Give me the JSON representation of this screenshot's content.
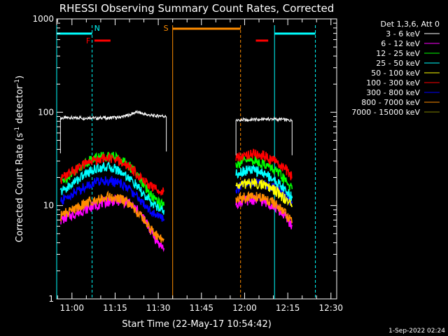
{
  "chart_data": {
    "type": "line",
    "title": "RHESSI Observing Summary Count Rates, Corrected",
    "xlabel": "Start Time (22-May-17 10:54:42)",
    "ylabel": "Corrected Count Rate (s^-1 detector^-1)",
    "ylabel_main": "Corrected Count Rate (s",
    "ylabel_sup1": "-1",
    "ylabel_mid": " detector",
    "ylabel_sup2": "-1",
    "ylabel_end": ")",
    "yscale": "log",
    "ylim": [
      1,
      1000
    ],
    "xlim_minutes": [
      654.7,
      752.0
    ],
    "x_tick_labels": [
      "11:00",
      "11:15",
      "11:30",
      "11:45",
      "12:00",
      "12:15",
      "12:30"
    ],
    "x_ticks_minutes": [
      660,
      675,
      690,
      705,
      720,
      735,
      750
    ],
    "y_tick_labels": [
      "1",
      "10",
      "100",
      "1000"
    ],
    "y_ticks": [
      1,
      10,
      100,
      1000
    ],
    "legend_header": "Det 1,3,6, Att 0",
    "legend_placement": "outside-right",
    "series": [
      {
        "name": "3 - 6 keV",
        "color": "#000000",
        "segments": [
          {
            "x": [
              656.0,
              657.2,
              658.3,
              659.5,
              660.6,
              661.8,
              662.9,
              664.1,
              665.2,
              666.4,
              667.5,
              668.7,
              669.8,
              671.0,
              672.1,
              673.3,
              674.4,
              675.6,
              676.7,
              677.9,
              679.0,
              680.2,
              681.3,
              682.5,
              683.6,
              684.8,
              685.9,
              687.1,
              688.2,
              689.4,
              690.5,
              691.7,
              692.8
            ],
            "y": [
              86,
              87,
              87,
              88,
              86,
              87,
              88,
              86,
              87,
              88,
              87,
              86,
              87,
              88,
              86,
              87,
              88,
              87,
              89,
              90,
              92,
              94,
              98,
              100,
              99,
              96,
              94,
              93,
              92,
              91,
              92,
              91,
              90
            ]
          },
          {
            "x": [
              717.0,
              718.3,
              719.6,
              720.9,
              722.2,
              723.5,
              724.8,
              726.1,
              727.4,
              728.7,
              730.0,
              731.3,
              732.6,
              733.9,
              735.2,
              736.5
            ],
            "y": [
              82,
              82,
              83,
              82,
              83,
              84,
              83,
              84,
              85,
              84,
              85,
              83,
              84,
              83,
              82,
              82
            ]
          }
        ]
      },
      {
        "name": "6 - 12 keV",
        "color": "#ff00ff",
        "segments": [
          {
            "x": [
              656.0,
              657.5,
              659.0,
              660.5,
              662.0,
              663.5,
              665.0,
              666.5,
              668.0,
              669.5,
              671.0,
              672.5,
              674.0,
              675.5,
              677.0,
              678.5,
              680.0,
              681.5,
              683.0,
              684.5,
              686.0,
              687.5,
              689.0,
              690.5,
              692.0
            ],
            "y": [
              7.0,
              7.3,
              7.7,
              8.0,
              8.4,
              8.8,
              9.2,
              9.6,
              10.0,
              10.4,
              10.8,
              11.0,
              11.2,
              11.3,
              11.2,
              10.9,
              10.4,
              9.6,
              8.7,
              7.6,
              6.4,
              5.3,
              4.4,
              3.8,
              3.5
            ]
          },
          {
            "x": [
              717.0,
              718.4,
              719.8,
              721.2,
              722.6,
              724.0,
              725.4,
              726.8,
              728.2,
              729.6,
              731.0,
              732.4,
              733.8,
              735.2,
              736.5
            ],
            "y": [
              10.5,
              10.9,
              11.2,
              11.4,
              11.5,
              11.5,
              11.3,
              11.0,
              10.6,
              10.1,
              9.4,
              8.6,
              7.8,
              6.9,
              6.0
            ]
          }
        ]
      },
      {
        "name": "12 - 25 keV",
        "color": "#00ff00",
        "segments": [
          {
            "x": [
              656.0,
              657.5,
              659.0,
              660.5,
              662.0,
              663.5,
              665.0,
              666.5,
              668.0,
              669.5,
              671.0,
              672.5,
              674.0,
              675.5,
              677.0,
              678.5,
              680.0,
              681.5,
              683.0,
              684.5,
              686.0,
              687.5,
              689.0,
              690.5,
              692.0
            ],
            "y": [
              18,
              19.5,
              21,
              23,
              25,
              27,
              29,
              31,
              32.5,
              33.5,
              34,
              34,
              33.5,
              32.5,
              31,
              29,
              26.5,
              23.5,
              20.5,
              17.5,
              15,
              13,
              11.5,
              10.5,
              10
            ]
          },
          {
            "x": [
              717.0,
              718.4,
              719.8,
              721.2,
              722.6,
              724.0,
              725.4,
              726.8,
              728.2,
              729.6,
              731.0,
              732.4,
              733.8,
              735.2,
              736.5
            ],
            "y": [
              28,
              29,
              30,
              30.5,
              30.5,
              30,
              29,
              28,
              26.5,
              25,
              23,
              21,
              19,
              17,
              15
            ]
          }
        ]
      },
      {
        "name": "25 - 50 keV",
        "color": "#00ffff",
        "segments": [
          {
            "x": [
              656.0,
              657.5,
              659.0,
              660.5,
              662.0,
              663.5,
              665.0,
              666.5,
              668.0,
              669.5,
              671.0,
              672.5,
              674.0,
              675.5,
              677.0,
              678.5,
              680.0,
              681.5,
              683.0,
              684.5,
              686.0,
              687.5,
              689.0,
              690.5,
              692.0
            ],
            "y": [
              14,
              15,
              16,
              17.5,
              19,
              20.5,
              22,
              23.5,
              24.5,
              25.5,
              26,
              26,
              25.5,
              24.5,
              23,
              21.5,
              19.5,
              17.5,
              15.5,
              13.5,
              12,
              10.8,
              10,
              9.4,
              9
            ]
          },
          {
            "x": [
              717.0,
              718.4,
              719.8,
              721.2,
              722.6,
              724.0,
              725.4,
              726.8,
              728.2,
              729.6,
              731.0,
              732.4,
              733.8,
              735.2,
              736.5
            ],
            "y": [
              22,
              23,
              23.5,
              24,
              24,
              23.5,
              23,
              22,
              21,
              19.5,
              18,
              16.5,
              15,
              13.5,
              12
            ]
          }
        ]
      },
      {
        "name": "50 - 100 keV",
        "color": "#ffff00",
        "segments": [
          {
            "x": [
              717.0,
              718.4,
              719.8,
              721.2,
              722.6,
              724.0,
              725.4,
              726.8,
              728.2,
              729.6,
              731.0,
              732.4,
              733.8,
              735.2,
              736.5
            ],
            "y": [
              16,
              16.5,
              17,
              17.5,
              17.5,
              17.3,
              17,
              16.5,
              15.8,
              15,
              14,
              13,
              12,
              11,
              10
            ]
          }
        ]
      },
      {
        "name": "100 - 300 keV",
        "color": "#ff0000",
        "segments": [
          {
            "x": [
              656.0,
              657.5,
              659.0,
              660.5,
              662.0,
              663.5,
              665.0,
              666.5,
              668.0,
              669.5,
              671.0,
              672.5,
              674.0,
              675.5,
              677.0,
              678.5,
              680.0,
              681.5,
              683.0,
              684.5,
              686.0,
              687.5,
              689.0,
              690.5,
              692.0
            ],
            "y": [
              19,
              20.5,
              22,
              23.5,
              25,
              26.5,
              28,
              29.5,
              30.5,
              31.5,
              32,
              32,
              31.5,
              30.5,
              29,
              27.5,
              25.5,
              23.5,
              21.5,
              19.5,
              17.5,
              16,
              15,
              14.5,
              14.5
            ]
          },
          {
            "x": [
              717.0,
              718.4,
              719.8,
              721.2,
              722.6,
              724.0,
              725.4,
              726.8,
              728.2,
              729.6,
              731.0,
              732.4,
              733.8,
              735.2,
              736.5
            ],
            "y": [
              32,
              33,
              34,
              35,
              35.5,
              35.5,
              35,
              34,
              32.5,
              31,
              29,
              27,
              25,
              22.5,
              20
            ]
          }
        ]
      },
      {
        "name": "300 - 800 keV",
        "color": "#0000ff",
        "segments": [
          {
            "x": [
              656.0,
              657.5,
              659.0,
              660.5,
              662.0,
              663.5,
              665.0,
              666.5,
              668.0,
              669.5,
              671.0,
              672.5,
              674.0,
              675.5,
              677.0,
              678.5,
              680.0,
              681.5,
              683.0,
              684.5,
              686.0,
              687.5,
              689.0,
              690.5,
              692.0
            ],
            "y": [
              11,
              11.8,
              12.6,
              13.5,
              14.4,
              15.3,
              16.2,
              17,
              17.7,
              18.2,
              18.5,
              18.5,
              18.2,
              17.7,
              17,
              16,
              14.8,
              13.5,
              12.2,
              11,
              9.8,
              8.8,
              8,
              7.5,
              7.2
            ]
          },
          {
            "x": [
              717.0,
              718.4,
              719.8,
              721.2,
              722.6,
              724.0,
              725.4,
              726.8,
              728.2,
              729.6,
              731.0,
              732.4,
              733.8,
              735.2,
              736.5
            ],
            "y": [
              15,
              15.8,
              16.5,
              17,
              17.3,
              17.5,
              17.3,
              17,
              16.5,
              15.8,
              15,
              14,
              13,
              11.8,
              10.5
            ]
          }
        ]
      },
      {
        "name": "800 - 7000 keV",
        "color": "#ff8c00",
        "segments": [
          {
            "x": [
              656.0,
              657.5,
              659.0,
              660.5,
              662.0,
              663.5,
              665.0,
              666.5,
              668.0,
              669.5,
              671.0,
              672.5,
              674.0,
              675.5,
              677.0,
              678.5,
              680.0,
              681.5,
              683.0,
              684.5,
              686.0,
              687.5,
              689.0,
              690.5,
              692.0
            ],
            "y": [
              7.8,
              8.2,
              8.6,
              9.1,
              9.6,
              10.1,
              10.6,
              11.1,
              11.6,
              12.0,
              12.3,
              12.4,
              12.3,
              12.0,
              11.6,
              11.0,
              10.2,
              9.3,
              8.3,
              7.3,
              6.3,
              5.5,
              4.9,
              4.5,
              4.4
            ]
          },
          {
            "x": [
              717.0,
              718.4,
              719.8,
              721.2,
              722.6,
              724.0,
              725.4,
              726.8,
              728.2,
              729.6,
              731.0,
              732.4,
              733.8,
              735.2,
              736.5
            ],
            "y": [
              11.5,
              11.9,
              12.2,
              12.4,
              12.5,
              12.4,
              12.2,
              11.9,
              11.4,
              10.8,
              10.0,
              9.2,
              8.3,
              7.4,
              6.5
            ]
          }
        ]
      },
      {
        "name": "7000 - 15000 keV",
        "color": "#808000",
        "segments": []
      }
    ],
    "annotations": [
      {
        "label": "N",
        "x": 667.0,
        "color": "#00ffff"
      },
      {
        "label": "S",
        "x": 695.0,
        "color": "#ff8c00"
      }
    ],
    "flags": {
      "saa": [
        [
          695.0,
          718.6
        ]
      ],
      "night": [
        [
          654.7,
          667.0
        ],
        [
          730.4,
          744.6
        ]
      ],
      "flare": [
        [
          667.8,
          673.4
        ],
        [
          723.9,
          728.2
        ]
      ]
    },
    "flag_labels": {
      "flare_letter": "F"
    },
    "timestamp": "1-Sep-2022 02:24"
  }
}
